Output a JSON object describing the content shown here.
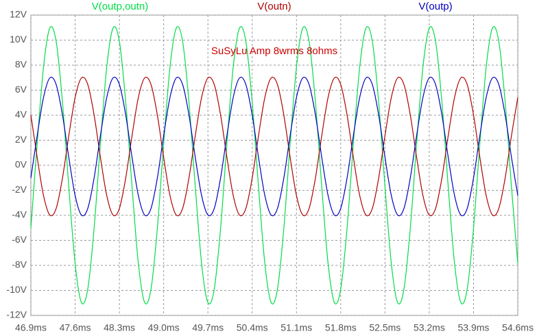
{
  "chart_data": {
    "type": "line",
    "annotation": "SuSyLu Amp 8wrms 8ohms",
    "annotation_color": "#cc0000",
    "x": [
      46.9,
      47,
      47.1,
      47.2,
      47.3,
      47.4,
      47.5,
      47.6,
      47.7,
      47.8,
      47.9,
      48,
      48.1,
      48.2,
      48.3,
      48.4,
      48.5,
      48.6,
      48.7,
      48.8,
      48.9,
      49,
      49.1,
      49.2,
      49.3,
      49.4,
      49.5,
      49.6,
      49.7,
      49.8,
      49.9,
      50,
      50.1,
      50.2,
      50.3,
      50.4,
      50.5,
      50.6,
      50.7,
      50.8,
      50.9,
      51,
      51.1,
      51.2,
      51.3,
      51.4,
      51.5,
      51.6,
      51.7,
      51.8,
      51.9,
      52,
      52.1,
      52.2,
      52.3,
      52.4,
      52.5,
      52.6,
      52.7,
      52.8,
      52.9,
      53,
      53.1,
      53.2,
      53.3,
      53.4,
      53.5,
      53.6,
      53.7,
      53.8,
      53.9,
      54,
      54.1,
      54.2,
      54.3,
      54.4,
      54.5,
      54.6
    ],
    "series": [
      {
        "name": "V(outp,outn)",
        "color": "#00dd44",
        "values": [
          -5.04,
          1.73,
          7.85,
          10.97,
          9.89,
          5.04,
          -1.73,
          -7.85,
          -10.97,
          -9.89,
          -5.04,
          1.73,
          7.85,
          10.97,
          9.89,
          5.04,
          -1.73,
          -7.85,
          -10.97,
          -9.89,
          -5.04,
          1.73,
          7.85,
          10.97,
          9.89,
          5.04,
          -1.73,
          -7.85,
          -10.97,
          -9.89,
          -5.04,
          1.73,
          7.85,
          10.97,
          9.89,
          5.04,
          -1.73,
          -7.85,
          -10.97,
          -9.89,
          -5.04,
          1.73,
          7.85,
          10.97,
          9.89,
          5.04,
          -1.73,
          -7.85,
          -10.97,
          -9.89,
          -5.04,
          1.73,
          7.85,
          10.97,
          9.89,
          5.04,
          -1.73,
          -7.85,
          -10.97,
          -9.89,
          -5.04,
          1.73,
          7.85,
          10.97,
          9.89,
          5.04,
          -1.73,
          -7.85,
          -10.97,
          -9.89,
          -5.04,
          1.73,
          7.85,
          10.97,
          9.89,
          5.04,
          -1.73,
          -7.85
        ]
      },
      {
        "name": "V(outn)",
        "color": "#b00000",
        "values": [
          4.02,
          0.63,
          -2.42,
          -3.98,
          -3.45,
          -1.02,
          2.37,
          5.42,
          6.98,
          6.45,
          4.02,
          0.63,
          -2.42,
          -3.98,
          -3.45,
          -1.02,
          2.37,
          5.42,
          6.98,
          6.45,
          4.02,
          0.63,
          -2.42,
          -3.98,
          -3.45,
          -1.02,
          2.37,
          5.42,
          6.98,
          6.45,
          4.02,
          0.63,
          -2.42,
          -3.98,
          -3.45,
          -1.02,
          2.37,
          5.42,
          6.98,
          6.45,
          4.02,
          0.63,
          -2.42,
          -3.98,
          -3.45,
          -1.02,
          2.37,
          5.42,
          6.98,
          6.45,
          4.02,
          0.63,
          -2.42,
          -3.98,
          -3.45,
          -1.02,
          2.37,
          5.42,
          6.98,
          6.45,
          4.02,
          0.63,
          -2.42,
          -3.98,
          -3.45,
          -1.02,
          2.37,
          5.42,
          6.98,
          6.45,
          4.02,
          0.63,
          -2.42,
          -3.98,
          -3.45,
          -1.02,
          2.37,
          5.42
        ]
      },
      {
        "name": "V(outp)",
        "color": "#0000c0",
        "values": [
          -1.02,
          2.37,
          5.42,
          6.98,
          6.45,
          4.02,
          0.63,
          -2.42,
          -3.98,
          -3.45,
          -1.02,
          2.37,
          5.42,
          6.98,
          6.45,
          4.02,
          0.63,
          -2.42,
          -3.98,
          -3.45,
          -1.02,
          2.37,
          5.42,
          6.98,
          6.45,
          4.02,
          0.63,
          -2.42,
          -3.98,
          -3.45,
          -1.02,
          2.37,
          5.42,
          6.98,
          6.45,
          4.02,
          0.63,
          -2.42,
          -3.98,
          -3.45,
          -1.02,
          2.37,
          5.42,
          6.98,
          6.45,
          4.02,
          0.63,
          -2.42,
          -3.98,
          -3.45,
          -1.02,
          2.37,
          5.42,
          6.98,
          6.45,
          4.02,
          0.63,
          -2.42,
          -3.98,
          -3.45,
          -1.02,
          2.37,
          5.42,
          6.98,
          6.45,
          4.02,
          0.63,
          -2.42,
          -3.98,
          -3.45,
          -1.02,
          2.37,
          5.42,
          6.98,
          6.45,
          4.02,
          0.63,
          -2.42
        ]
      }
    ],
    "xlim": [
      46.9,
      54.6
    ],
    "xticks": [
      {
        "value": 46.9,
        "label": "46.9ms"
      },
      {
        "value": 47.6,
        "label": "47.6ms"
      },
      {
        "value": 48.3,
        "label": "48.3ms"
      },
      {
        "value": 49.0,
        "label": "49.0ms"
      },
      {
        "value": 49.7,
        "label": "49.7ms"
      },
      {
        "value": 50.4,
        "label": "50.4ms"
      },
      {
        "value": 51.1,
        "label": "51.1ms"
      },
      {
        "value": 51.8,
        "label": "51.8ms"
      },
      {
        "value": 52.5,
        "label": "52.5ms"
      },
      {
        "value": 53.2,
        "label": "53.2ms"
      },
      {
        "value": 53.9,
        "label": "53.9ms"
      },
      {
        "value": 54.6,
        "label": "54.6ms"
      }
    ],
    "ylim": [
      -12,
      12
    ],
    "yticks": [
      {
        "value": -12,
        "label": "-12V"
      },
      {
        "value": -10,
        "label": "-10V"
      },
      {
        "value": -8,
        "label": "-8V"
      },
      {
        "value": -6,
        "label": "-6V"
      },
      {
        "value": -4,
        "label": "-4V"
      },
      {
        "value": -2,
        "label": "-2V"
      },
      {
        "value": 0,
        "label": "0V"
      },
      {
        "value": 2,
        "label": "2V"
      },
      {
        "value": 4,
        "label": "4V"
      },
      {
        "value": 6,
        "label": "6V"
      },
      {
        "value": 8,
        "label": "8V"
      },
      {
        "value": 10,
        "label": "10V"
      },
      {
        "value": 12,
        "label": "12V"
      }
    ],
    "grid": true
  }
}
